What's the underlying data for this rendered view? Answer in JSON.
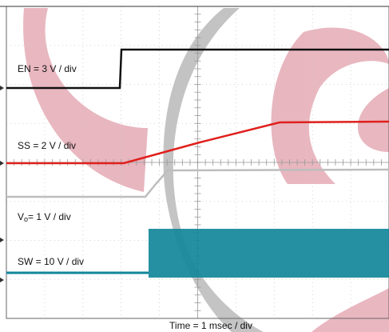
{
  "traces": [
    {
      "label": "EN = 3 V / div"
    },
    {
      "label": "SS = 2 V / div"
    },
    {
      "label_main": "V",
      "label_sub": "o",
      "label_rest": "= 1 V / div"
    },
    {
      "label": "SW = 10 V / div"
    }
  ],
  "x_axis_label": "Time = 1 msec / div"
}
